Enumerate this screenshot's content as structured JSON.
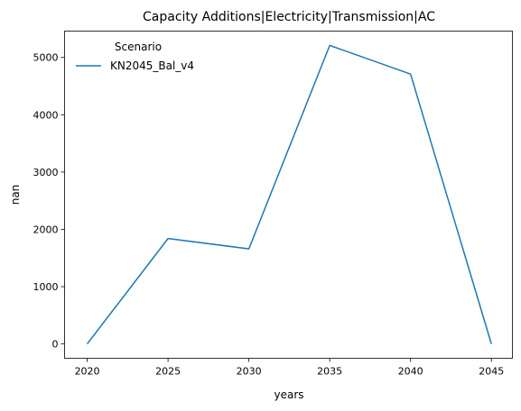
{
  "chart_data": {
    "type": "line",
    "title": "Capacity Additions|Electricity|Transmission|AC",
    "xlabel": "years",
    "ylabel": "nan",
    "x": [
      2020,
      2025,
      2030,
      2035,
      2040,
      2045
    ],
    "xlim": [
      2018.6,
      2046.3
    ],
    "ylim": [
      -250,
      5460
    ],
    "xticks": [
      "2020",
      "2025",
      "2030",
      "2035",
      "2040",
      "2045"
    ],
    "yticks": [
      "0",
      "1000",
      "2000",
      "3000",
      "4000",
      "5000"
    ],
    "grid": false,
    "legend": {
      "title": "Scenario",
      "position": "top-left"
    },
    "series": [
      {
        "name": "KN2045_Bal_v4",
        "color": "#1f77b4",
        "values": [
          0,
          1840,
          1660,
          5210,
          4710,
          0
        ]
      }
    ]
  }
}
